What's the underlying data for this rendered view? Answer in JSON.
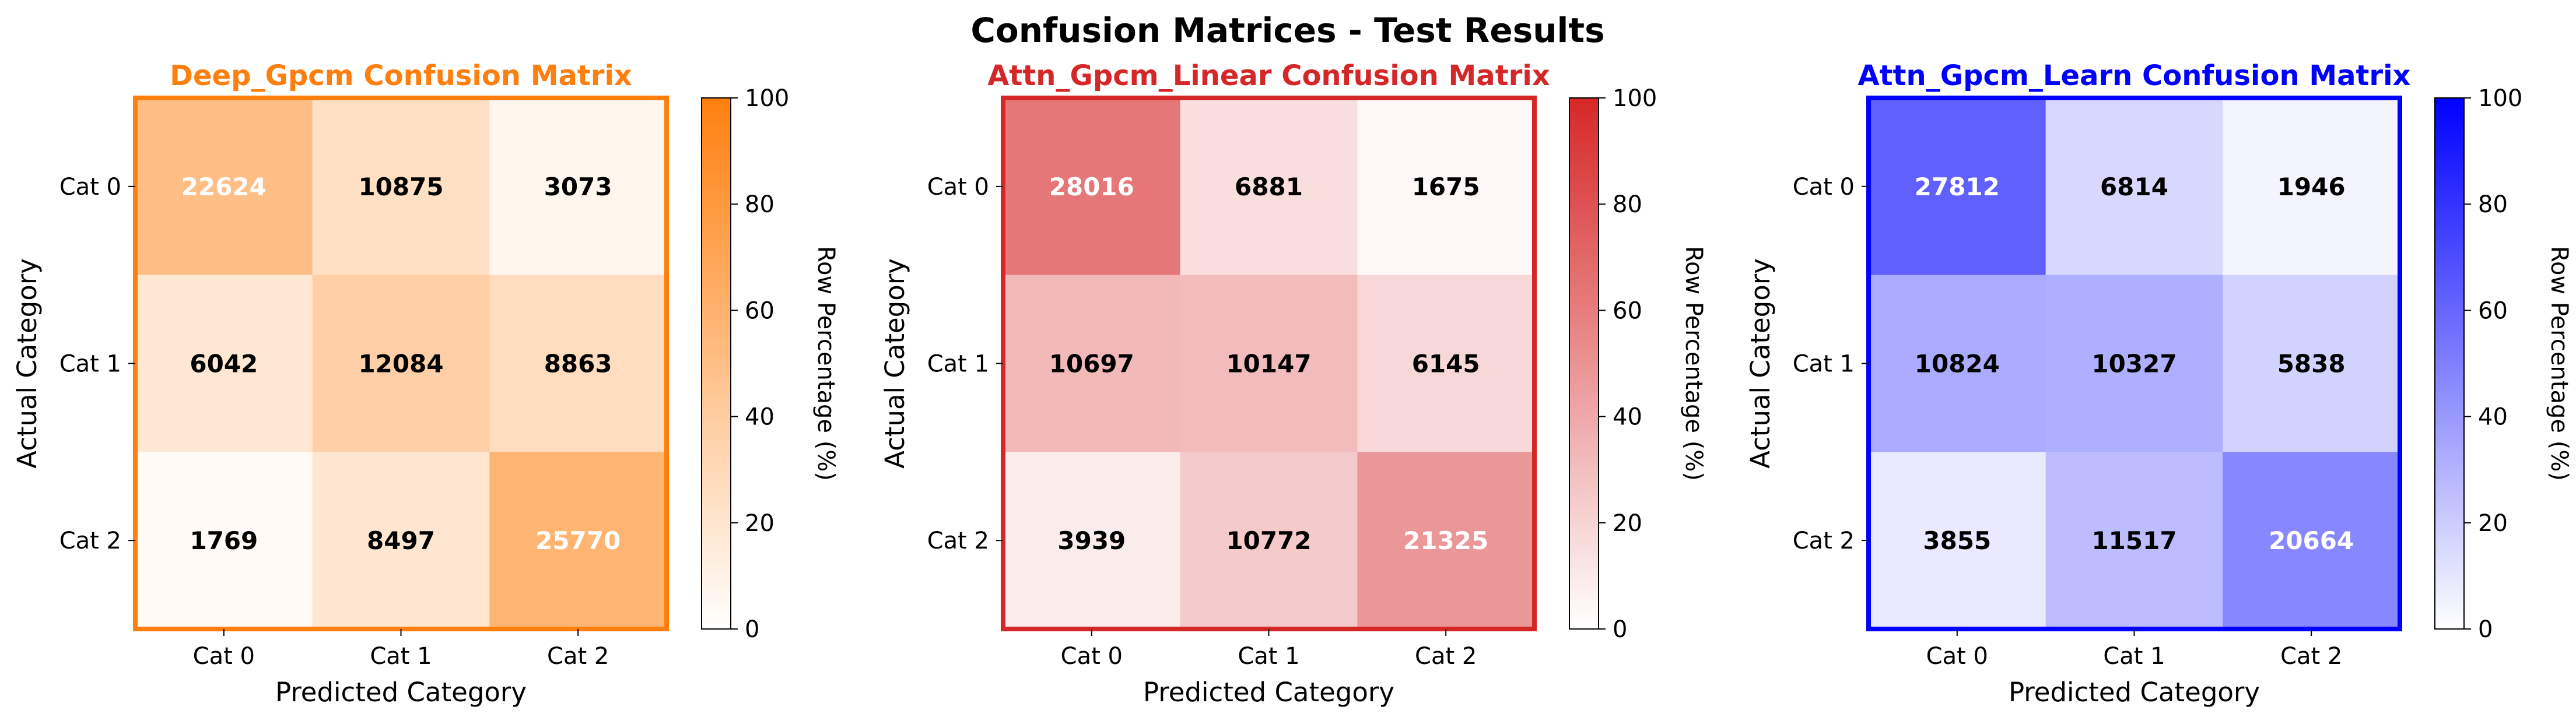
{
  "figure_title": "Confusion Matrices - Test Results",
  "chart_data": [
    {
      "type": "heatmap",
      "title": "Deep_Gpcm Confusion Matrix",
      "xlabel": "Predicted Category",
      "ylabel": "Actual Category",
      "x_categories": [
        "Cat 0",
        "Cat 1",
        "Cat 2"
      ],
      "y_categories": [
        "Cat 0",
        "Cat 1",
        "Cat 2"
      ],
      "values": [
        [
          22624,
          10875,
          3073
        ],
        [
          6042,
          12084,
          8863
        ],
        [
          1769,
          8497,
          25770
        ]
      ],
      "colorbar": {
        "label": "Row Percentage (%)",
        "range": [
          0,
          100
        ],
        "ticks": [
          "0",
          "20",
          "40",
          "60",
          "80",
          "100"
        ]
      },
      "color": "#ff7f0e"
    },
    {
      "type": "heatmap",
      "title": "Attn_Gpcm_Linear Confusion Matrix",
      "xlabel": "Predicted Category",
      "ylabel": "Actual Category",
      "x_categories": [
        "Cat 0",
        "Cat 1",
        "Cat 2"
      ],
      "y_categories": [
        "Cat 0",
        "Cat 1",
        "Cat 2"
      ],
      "values": [
        [
          28016,
          6881,
          1675
        ],
        [
          10697,
          10147,
          6145
        ],
        [
          3939,
          10772,
          21325
        ]
      ],
      "colorbar": {
        "label": "Row Percentage (%)",
        "range": [
          0,
          100
        ],
        "ticks": [
          "0",
          "20",
          "40",
          "60",
          "80",
          "100"
        ]
      },
      "color": "#d62728"
    },
    {
      "type": "heatmap",
      "title": "Attn_Gpcm_Learn Confusion Matrix",
      "xlabel": "Predicted Category",
      "ylabel": "Actual Category",
      "x_categories": [
        "Cat 0",
        "Cat 1",
        "Cat 2"
      ],
      "y_categories": [
        "Cat 0",
        "Cat 1",
        "Cat 2"
      ],
      "values": [
        [
          27812,
          6814,
          1946
        ],
        [
          10824,
          10327,
          5838
        ],
        [
          3855,
          11517,
          20664
        ]
      ],
      "colorbar": {
        "label": "Row Percentage (%)",
        "range": [
          0,
          100
        ],
        "ticks": [
          "0",
          "20",
          "40",
          "60",
          "80",
          "100"
        ]
      },
      "color": "#0000ff"
    }
  ]
}
